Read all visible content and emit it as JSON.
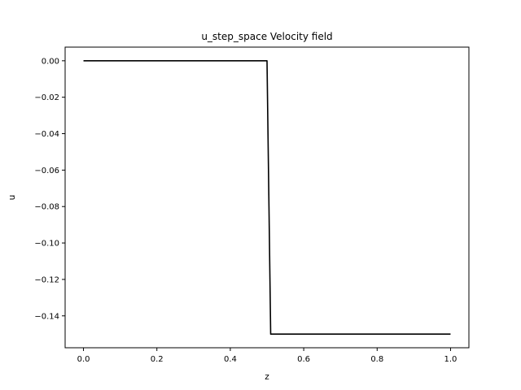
{
  "chart_data": {
    "type": "line",
    "title": "u_step_space Velocity field",
    "xlabel": "z",
    "ylabel": "u",
    "xlim": [
      -0.05,
      1.05
    ],
    "ylim": [
      -0.1575,
      0.0075
    ],
    "x_ticks": [
      0.0,
      0.2,
      0.4,
      0.6,
      0.8,
      1.0
    ],
    "x_tick_labels": [
      "0.0",
      "0.2",
      "0.4",
      "0.6",
      "0.8",
      "1.0"
    ],
    "y_ticks": [
      0.0,
      -0.02,
      -0.04,
      -0.06,
      -0.08,
      -0.1,
      -0.12,
      -0.14
    ],
    "y_tick_labels": [
      "0.00",
      "−0.02",
      "−0.04",
      "−0.06",
      "−0.08",
      "−0.10",
      "−0.12",
      "−0.14"
    ],
    "grid": false,
    "legend": "none",
    "series": [
      {
        "color": "#000000",
        "x": [
          0.0,
          0.5,
          0.51,
          1.0
        ],
        "y": [
          0.0,
          0.0,
          -0.15,
          -0.15
        ]
      }
    ]
  }
}
